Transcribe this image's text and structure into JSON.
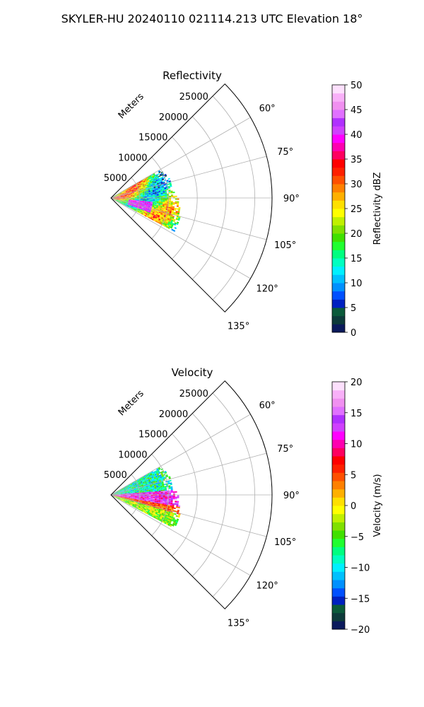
{
  "figure": {
    "suptitle": "SKYLER-HU  20240110  021114.213 UTC Elevation 18°"
  },
  "chart_data": [
    {
      "type": "polar-sector",
      "title": "Reflectivity",
      "radial_label": "Meters",
      "radial_ticks": [
        5000,
        10000,
        15000,
        20000,
        25000
      ],
      "radial_tick_labels": [
        "5000",
        "10000",
        "15000",
        "20000",
        "25000"
      ],
      "radial_max": 28000,
      "angle_range_deg": [
        45,
        135
      ],
      "angle_ticks": [
        60,
        75,
        90,
        105,
        120,
        135
      ],
      "angle_tick_labels": [
        "60°",
        "75°",
        "90°",
        "105°",
        "120°",
        "135°"
      ],
      "grid": true,
      "data_extent": {
        "radius_max_m": [
          {
            "angle": 60,
            "r": 9500
          },
          {
            "angle": 70,
            "r": 10500
          },
          {
            "angle": 80,
            "r": 10500
          },
          {
            "angle": 90,
            "r": 11500
          },
          {
            "angle": 100,
            "r": 12000
          },
          {
            "angle": 110,
            "r": 12500
          },
          {
            "angle": 118,
            "r": 12500
          }
        ]
      },
      "colorbar": {
        "label": "Reflectivity dBZ",
        "min": 0,
        "max": 50,
        "ticks": [
          0,
          5,
          10,
          15,
          20,
          25,
          30,
          35,
          40,
          45,
          50
        ],
        "tick_labels": [
          "0",
          "5",
          "10",
          "15",
          "20",
          "25",
          "30",
          "35",
          "40",
          "45",
          "50"
        ],
        "colors": [
          "#0b1a5c",
          "#0d3a3a",
          "#0b5a3a",
          "#0020c0",
          "#0050ff",
          "#0090ff",
          "#00c0ff",
          "#00f0ff",
          "#00ffc0",
          "#00ff80",
          "#20ff30",
          "#40e000",
          "#80e000",
          "#c0f000",
          "#ffff00",
          "#ffe000",
          "#ffb000",
          "#ff8000",
          "#ff5000",
          "#ff2000",
          "#ff0000",
          "#ff0060",
          "#ff00b0",
          "#ff00ff",
          "#d040ff",
          "#b030ff",
          "#e070ff",
          "#f090f0",
          "#f8b0f8",
          "#fde0fd"
        ]
      },
      "field_description": "reflectivity values mostly 10–40 dBZ"
    },
    {
      "type": "polar-sector",
      "title": "Velocity",
      "radial_label": "Meters",
      "radial_ticks": [
        5000,
        10000,
        15000,
        20000,
        25000
      ],
      "radial_tick_labels": [
        "5000",
        "10000",
        "15000",
        "20000",
        "25000"
      ],
      "radial_max": 28000,
      "angle_range_deg": [
        45,
        135
      ],
      "angle_ticks": [
        60,
        75,
        90,
        105,
        120,
        135
      ],
      "angle_tick_labels": [
        "60°",
        "75°",
        "90°",
        "105°",
        "120°",
        "135°"
      ],
      "grid": true,
      "colorbar": {
        "label": "Velocity (m/s)",
        "min": -20,
        "max": 20,
        "ticks": [
          -20,
          -15,
          -10,
          -5,
          0,
          5,
          10,
          15,
          20
        ],
        "tick_labels": [
          "−20",
          "−15",
          "−10",
          "−5",
          "0",
          "5",
          "10",
          "15",
          "20"
        ],
        "colors": [
          "#0b1a5c",
          "#0d3a3a",
          "#0b5a3a",
          "#0020c0",
          "#0050ff",
          "#0090ff",
          "#00c0ff",
          "#00f0ff",
          "#00ffc0",
          "#00ff80",
          "#20ff30",
          "#40e000",
          "#80e000",
          "#c0f000",
          "#ffff00",
          "#ffe000",
          "#ffb000",
          "#ff8000",
          "#ff5000",
          "#ff2000",
          "#ff0000",
          "#ff0060",
          "#ff00b0",
          "#ff00ff",
          "#d040ff",
          "#b030ff",
          "#e070ff",
          "#f090f0",
          "#f8b0f8",
          "#fde0fd"
        ]
      },
      "field_description": "velocity values roughly -10 to +15 m/s"
    }
  ]
}
